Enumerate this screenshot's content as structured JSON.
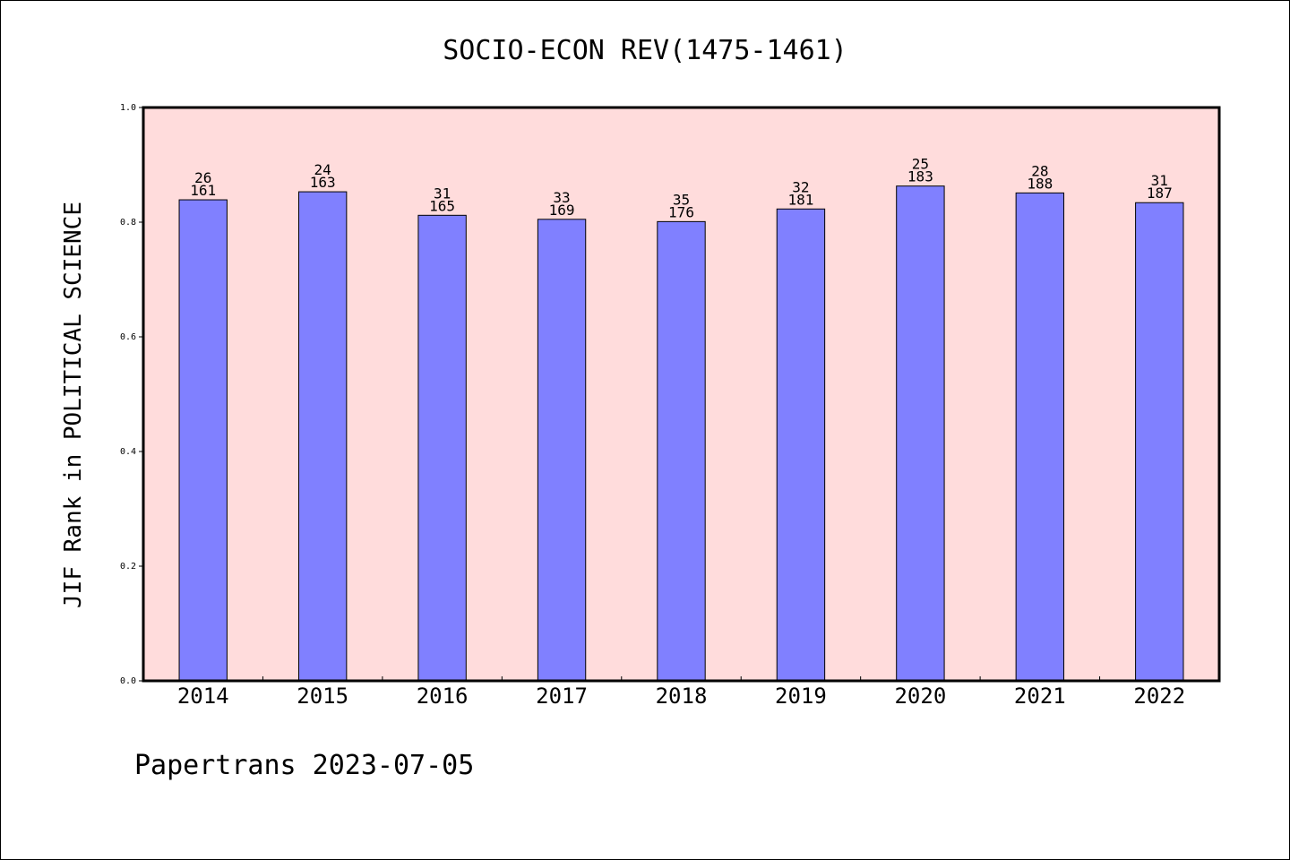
{
  "chart_data": {
    "type": "bar",
    "title": "SOCIO-ECON REV(1475-1461)",
    "xlabel": "",
    "ylabel": "JIF Rank in POLITICAL SCIENCE",
    "ylim": [
      0.0,
      1.0
    ],
    "yticks": [
      "0.0",
      "0.2",
      "0.4",
      "0.6",
      "0.8",
      "1.0"
    ],
    "categories": [
      "2014",
      "2015",
      "2016",
      "2017",
      "2018",
      "2019",
      "2020",
      "2021",
      "2022"
    ],
    "values": [
      0.839,
      0.853,
      0.812,
      0.805,
      0.801,
      0.823,
      0.863,
      0.851,
      0.834
    ],
    "bar_labels": [
      {
        "rank": "26",
        "total": "161"
      },
      {
        "rank": "24",
        "total": "163"
      },
      {
        "rank": "31",
        "total": "165"
      },
      {
        "rank": "33",
        "total": "169"
      },
      {
        "rank": "35",
        "total": "176"
      },
      {
        "rank": "32",
        "total": "181"
      },
      {
        "rank": "25",
        "total": "183"
      },
      {
        "rank": "28",
        "total": "188"
      },
      {
        "rank": "31",
        "total": "187"
      }
    ],
    "grid": false,
    "colors": {
      "bar_fill": "#8080ff",
      "plot_background": "#ffdcdc",
      "axis": "#000000"
    }
  },
  "footer": {
    "credit": "Papertrans 2023-07-05"
  }
}
